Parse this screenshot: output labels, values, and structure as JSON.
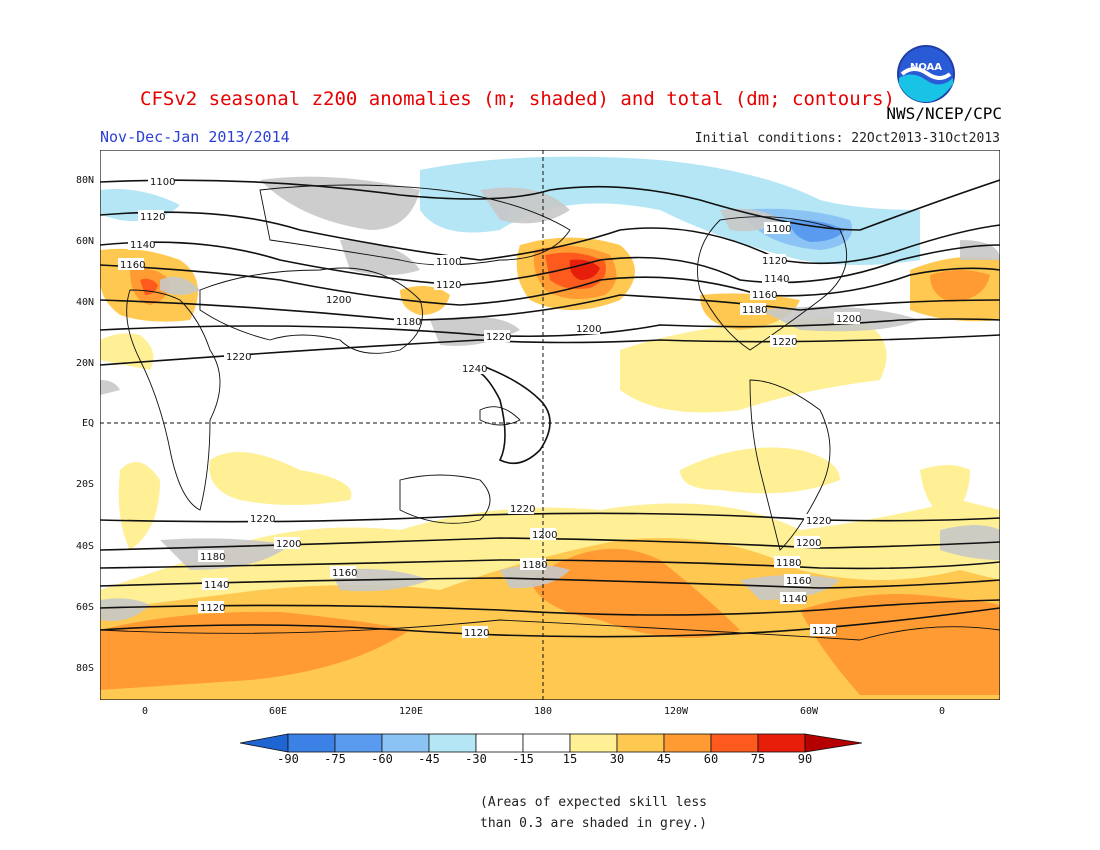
{
  "title": "CFSv2 seasonal z200 anomalies (m; shaded) and total (dm; contours)",
  "subtitle": "Nov-Dec-Jan 2013/2014",
  "agency": "NWS/NCEP/CPC",
  "initial_conditions": "Initial conditions: 22Oct2013-31Oct2013",
  "logo_text": "NOAA",
  "lat_labels": [
    "80N",
    "60N",
    "40N",
    "20N",
    "EQ",
    "20S",
    "40S",
    "60S",
    "80S"
  ],
  "lon_labels": [
    "0",
    "60E",
    "120E",
    "180",
    "120W",
    "60W",
    "0"
  ],
  "colorbar_labels": [
    "-90",
    "-75",
    "-60",
    "-45",
    "-30",
    "-15",
    "15",
    "30",
    "45",
    "60",
    "75",
    "90"
  ],
  "colorbar_colors": [
    "#1e64d2",
    "#3c82e6",
    "#5a9bf0",
    "#8cc3f5",
    "#b4e6f5",
    "#ffffff",
    "#fff096",
    "#ffc850",
    "#ff9b32",
    "#ff5a1e",
    "#e61e0a",
    "#b40000"
  ],
  "contour_labels": [
    "1100",
    "1120",
    "1140",
    "1160",
    "1180",
    "1200",
    "1220",
    "1240"
  ],
  "note_line1": "(Areas of expected skill less",
  "note_line2": "than 0.3 are shaded in grey.)",
  "colors": {
    "title": "#e60000",
    "subtitle": "#2b3fd6",
    "skill_grey": "#c8c8c8"
  }
}
